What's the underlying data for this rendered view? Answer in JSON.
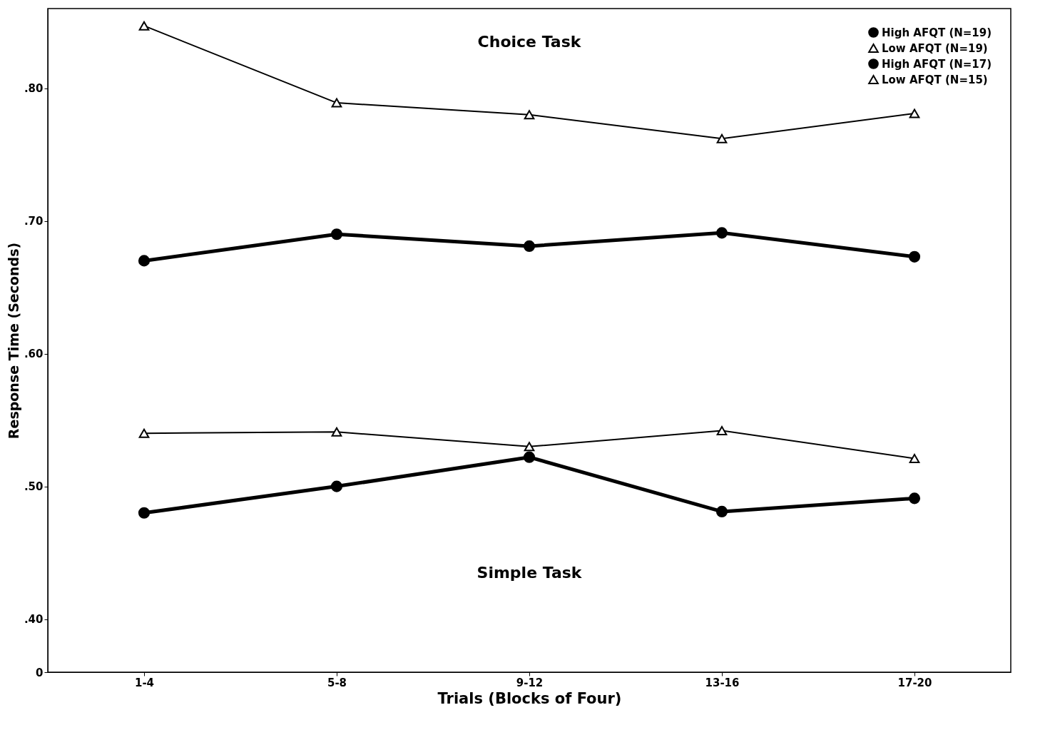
{
  "chart_data": {
    "type": "line",
    "xlabel": "Trials (Blocks of Four)",
    "ylabel": "Response Time (Seconds)",
    "categories": [
      "1-4",
      "5-8",
      "9-12",
      "13-16",
      "17-20"
    ],
    "series": [
      {
        "name": "High AFQT (N=19)",
        "color": "#000000",
        "marker": "circle",
        "values": [
          0.67,
          0.69,
          0.681,
          0.691,
          0.673
        ]
      },
      {
        "name": "Low AFQT (N=19)",
        "color": "#000000",
        "marker": "triangle",
        "values": [
          0.847,
          0.789,
          0.78,
          0.762,
          0.781
        ]
      },
      {
        "name": "High AFQT (N=17)",
        "color": "#000000",
        "marker": "circle",
        "values": [
          0.48,
          0.5,
          0.522,
          0.481,
          0.491
        ]
      },
      {
        "name": "Low AFQT (N=15)",
        "color": "#000000",
        "marker": "triangle",
        "values": [
          0.54,
          0.541,
          0.53,
          0.542,
          0.521
        ]
      }
    ],
    "ylim": [
      0.36,
      0.86
    ],
    "yticks": [
      {
        "value": 0.36,
        "label": "0"
      },
      {
        "value": 0.4,
        "label": ".40"
      },
      {
        "value": 0.5,
        "label": ".50"
      },
      {
        "value": 0.6,
        "label": ".60"
      },
      {
        "value": 0.7,
        "label": ".70"
      },
      {
        "value": 0.8,
        "label": ".80"
      }
    ],
    "annotations": [
      "Choice Task",
      "Simple Task"
    ],
    "legend": "top right",
    "grid": false,
    "line_style": "solid"
  }
}
